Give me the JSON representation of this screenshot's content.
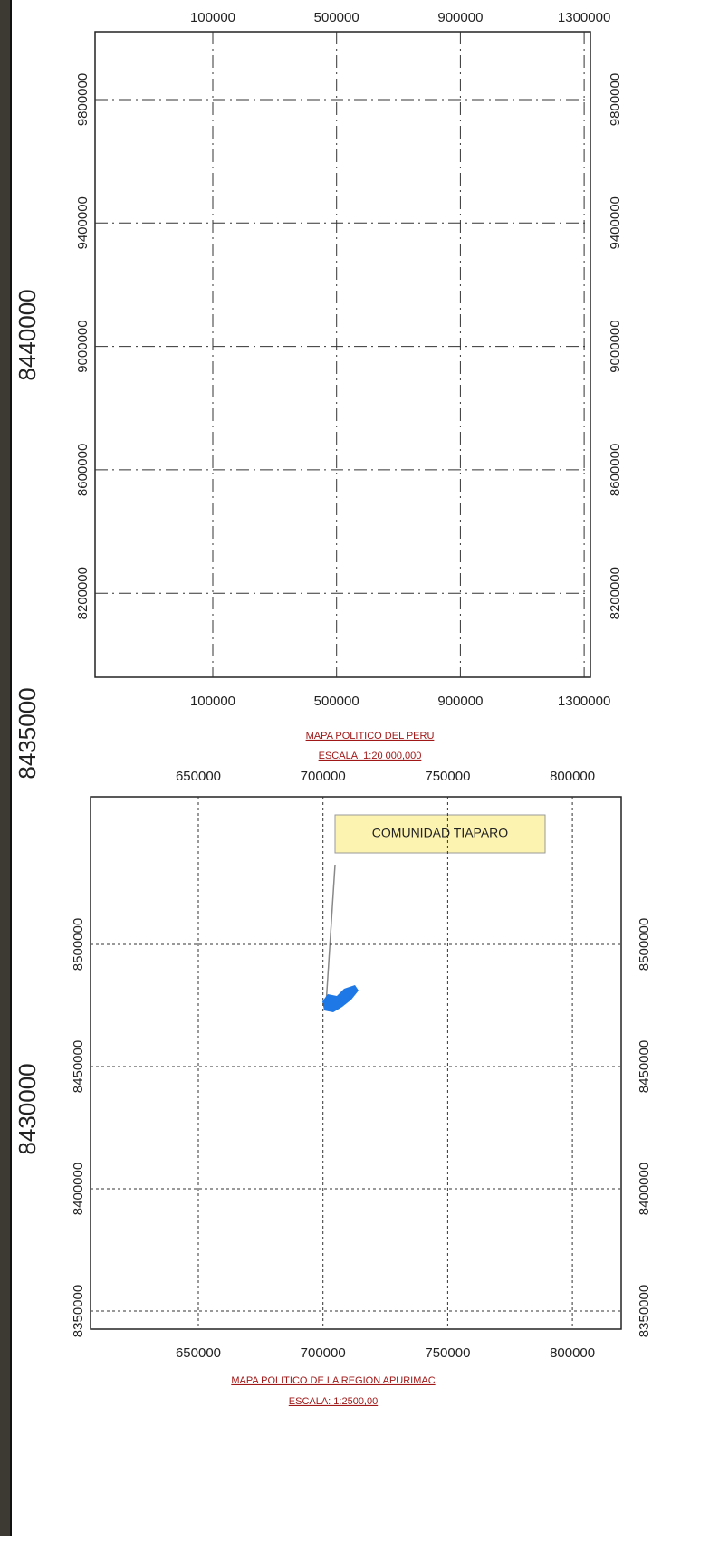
{
  "side_coordinates": [
    8440000,
    8435000,
    8430000
  ],
  "maps": [
    {
      "x_ticks": [
        100000,
        500000,
        900000,
        1300000
      ],
      "y_ticks": [
        9800000,
        9400000,
        9000000,
        8600000,
        8200000
      ],
      "title": "MAPA POLITICO DEL PERU",
      "scale": "ESCALA: 1:20 000,000"
    },
    {
      "x_ticks": [
        650000,
        700000,
        750000,
        800000
      ],
      "y_ticks": [
        8500000,
        8450000,
        8400000,
        8350000
      ],
      "title": "MAPA POLITICO DE LA REGION APURIMAC",
      "scale": "ESCALA: 1:2500,00",
      "callout": "COMUNIDAD TIAPARO"
    }
  ]
}
